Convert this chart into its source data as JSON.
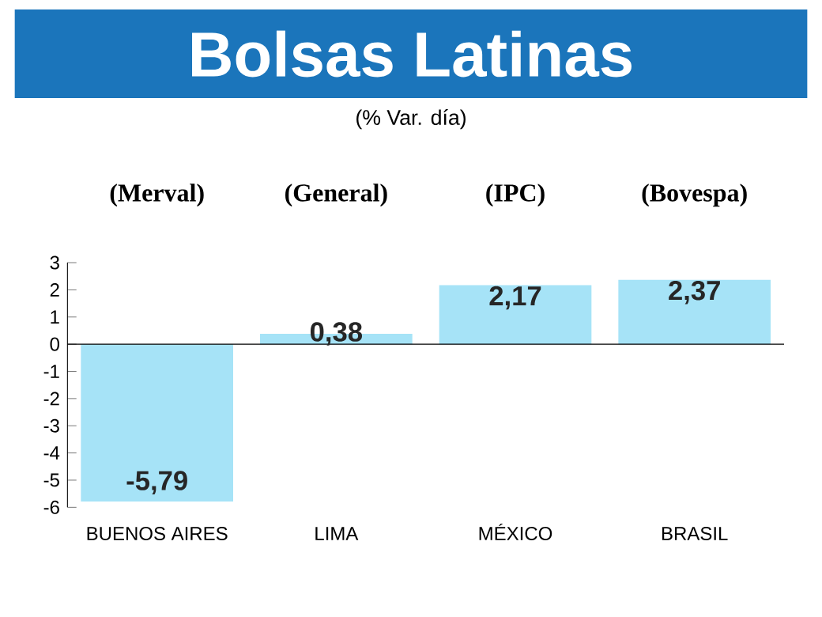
{
  "chart_data": {
    "type": "bar",
    "title": "Bolsas Latinas",
    "subtitle": "(% Var. día)",
    "categories": [
      "BUENOS AIRES",
      "LIMA",
      "MÉXICO",
      "BRASIL"
    ],
    "values": [
      -5.79,
      0.38,
      2.17,
      2.37
    ],
    "value_labels": [
      "-5,79",
      "0,38",
      "2,17",
      "2,37"
    ],
    "color": "#a6e3f7",
    "ylim": [
      -6,
      3
    ],
    "yticks": [
      -6,
      -5,
      -4,
      -3,
      -2,
      -1,
      0,
      1,
      2,
      3
    ],
    "annotations": [
      "(Merval)",
      "(General)",
      "(IPC)",
      "(Bovespa)"
    ]
  }
}
